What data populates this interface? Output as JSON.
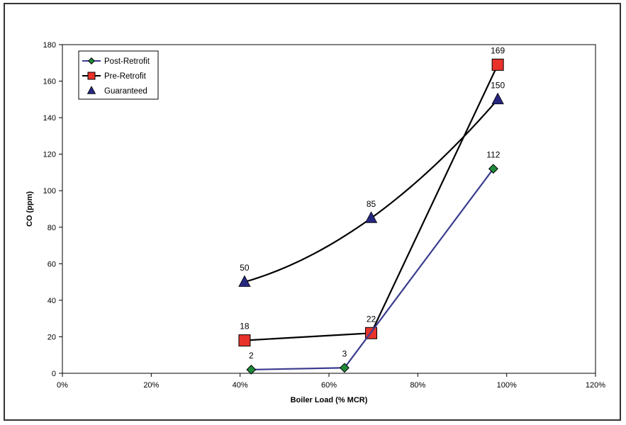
{
  "chart_data": {
    "type": "scatter",
    "xlabel": "Boiler Load (% MCR)",
    "ylabel": "CO (ppm)",
    "xlim": [
      0,
      120
    ],
    "ylim": [
      0,
      180
    ],
    "x_ticks": [
      "0%",
      "20%",
      "40%",
      "60%",
      "80%",
      "100%",
      "120%"
    ],
    "x_tick_values": [
      0,
      20,
      40,
      60,
      80,
      100,
      120
    ],
    "y_ticks": [
      "0",
      "20",
      "40",
      "60",
      "80",
      "100",
      "120",
      "140",
      "160",
      "180"
    ],
    "y_tick_values": [
      0,
      20,
      40,
      60,
      80,
      100,
      120,
      140,
      160,
      180
    ],
    "grid": false,
    "legend_position": "top-left",
    "series": [
      {
        "name": "Post-Retrofit",
        "marker": "diamond",
        "line": "straight",
        "line_color": "#3b3b8f",
        "marker_color": "#1f8a3a",
        "points": [
          {
            "x": 42.5,
            "y": 2,
            "label": "2"
          },
          {
            "x": 63.5,
            "y": 3,
            "label": "3"
          },
          {
            "x": 97,
            "y": 112,
            "label": "112"
          }
        ]
      },
      {
        "name": "Pre-Retrofit",
        "marker": "square",
        "line": "straight",
        "line_color": "#000000",
        "marker_color": "#e8322a",
        "points": [
          {
            "x": 41,
            "y": 18,
            "label": "18"
          },
          {
            "x": 69.5,
            "y": 22,
            "label": "22"
          },
          {
            "x": 98,
            "y": 169,
            "label": "169"
          }
        ]
      },
      {
        "name": "Guaranteed",
        "marker": "triangle",
        "line": "smooth",
        "line_color": "#000000",
        "marker_color": "#262680",
        "points": [
          {
            "x": 41,
            "y": 50,
            "label": "50"
          },
          {
            "x": 69.5,
            "y": 85,
            "label": "85"
          },
          {
            "x": 98,
            "y": 150,
            "label": "150"
          }
        ]
      }
    ]
  }
}
